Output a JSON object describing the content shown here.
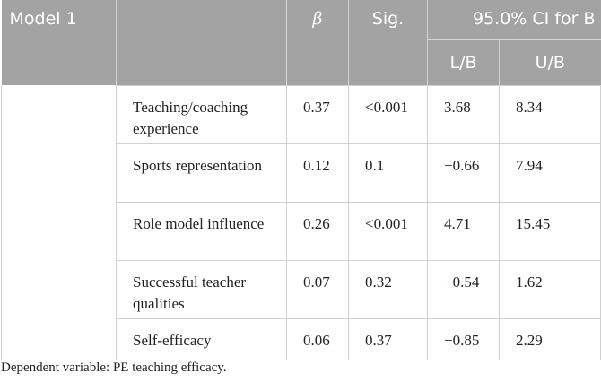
{
  "header": {
    "title": "Model 1",
    "ci": "95.0% CI for B",
    "columns": [
      "β",
      "Sig.",
      "L/B",
      "U/B"
    ]
  },
  "table": {
    "rows": [
      [
        "Teaching/coaching experience",
        "0.37",
        "<0.001",
        "3.68",
        "8.34"
      ],
      [
        "Sports representation",
        "0.12",
        "0.1",
        "−0.66",
        "7.94"
      ],
      [
        "Role model influence",
        "0.26",
        "<0.001",
        "4.71",
        "15.45"
      ],
      [
        "Successful teacher qualities",
        "0.07",
        "0.32",
        "−0.54",
        "1.62"
      ],
      [
        "Self-efficacy",
        "0.06",
        "0.37",
        "−0.85",
        "2.29"
      ]
    ]
  },
  "footnote": "Dependent variable: PE teaching efficacy."
}
